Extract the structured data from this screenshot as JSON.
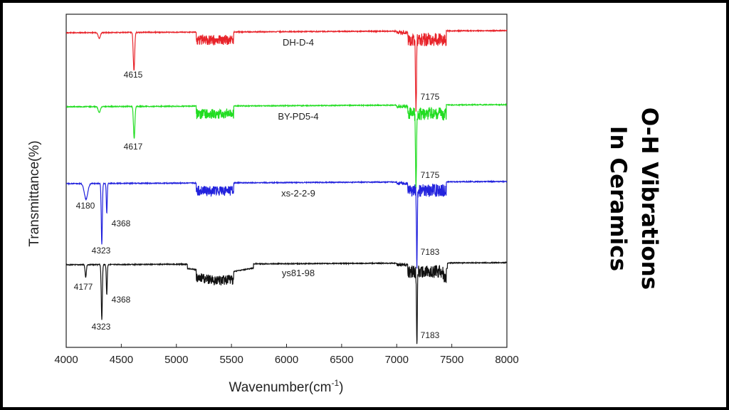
{
  "side_title": {
    "line1": "O-H Vibrations",
    "line2": "In Ceramics"
  },
  "chart_data": {
    "type": "line",
    "xlabel": "Wavenumber(cm",
    "xlabel_sup": "-1",
    "xlabel_close": ")",
    "ylabel": "Transmittance(%)",
    "xlim": [
      4000,
      8000
    ],
    "x_ticks": [
      4000,
      4500,
      5000,
      5500,
      6000,
      6500,
      7000,
      7500,
      8000
    ],
    "grid": false,
    "legend": "none",
    "series": [
      {
        "name": "DH-D-4",
        "color": "#e8232a",
        "peaks": [
          {
            "x": 4615,
            "label": "4615"
          },
          {
            "x": 7175,
            "label": "7175"
          }
        ]
      },
      {
        "name": "BY-PD5-4",
        "color": "#22dd22",
        "peaks": [
          {
            "x": 4617,
            "label": "4617"
          },
          {
            "x": 7175,
            "label": "7175"
          }
        ]
      },
      {
        "name": "xs-2-2-9",
        "color": "#2222dd",
        "peaks": [
          {
            "x": 4180,
            "label": "4180"
          },
          {
            "x": 4368,
            "label": "4368"
          },
          {
            "x": 4323,
            "label": "4323"
          },
          {
            "x": 7183,
            "label": "7183"
          }
        ]
      },
      {
        "name": "ys81-98",
        "color": "#111111",
        "peaks": [
          {
            "x": 4177,
            "label": "4177"
          },
          {
            "x": 4368,
            "label": "4368"
          },
          {
            "x": 4323,
            "label": "4323"
          },
          {
            "x": 7183,
            "label": "7183"
          }
        ]
      }
    ]
  }
}
